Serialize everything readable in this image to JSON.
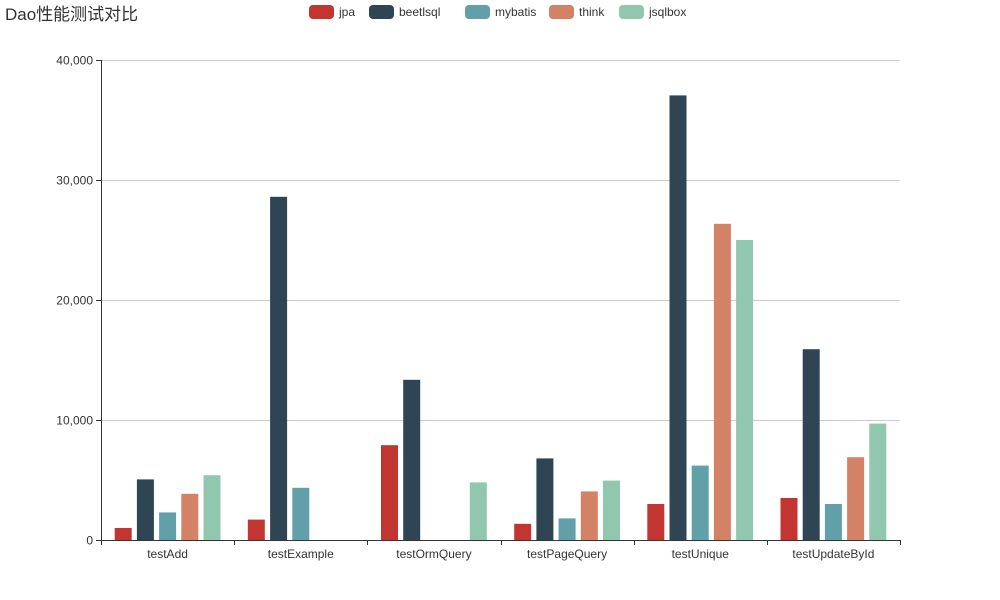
{
  "chart_data": {
    "type": "bar",
    "title": "Dao性能测试对比",
    "categories": [
      "testAdd",
      "testExample",
      "testOrmQuery",
      "testPageQuery",
      "testUnique",
      "testUpdateById"
    ],
    "series": [
      {
        "name": "jpa",
        "color": "#c23531",
        "values": [
          1000,
          1700,
          7900,
          1350,
          3000,
          3500
        ]
      },
      {
        "name": "beetlsql",
        "color": "#2f4554",
        "values": [
          5050,
          28600,
          13350,
          6800,
          37050,
          15900
        ]
      },
      {
        "name": "mybatis",
        "color": "#61a0a8",
        "values": [
          2300,
          4350,
          null,
          1800,
          6200,
          3000
        ]
      },
      {
        "name": "think",
        "color": "#d48265",
        "values": [
          3850,
          null,
          null,
          4050,
          26350,
          6900
        ]
      },
      {
        "name": "jsqlbox",
        "color": "#91c7ae",
        "values": [
          5400,
          null,
          4800,
          4950,
          25000,
          9700
        ]
      }
    ],
    "ylim": [
      0,
      40000
    ],
    "yticks": [
      0,
      10000,
      20000,
      30000,
      40000
    ],
    "ytick_labels": [
      "0",
      "10,000",
      "20,000",
      "30,000",
      "40,000"
    ],
    "grid": true,
    "legend_position": "top-center",
    "xlabel": "",
    "ylabel": ""
  }
}
